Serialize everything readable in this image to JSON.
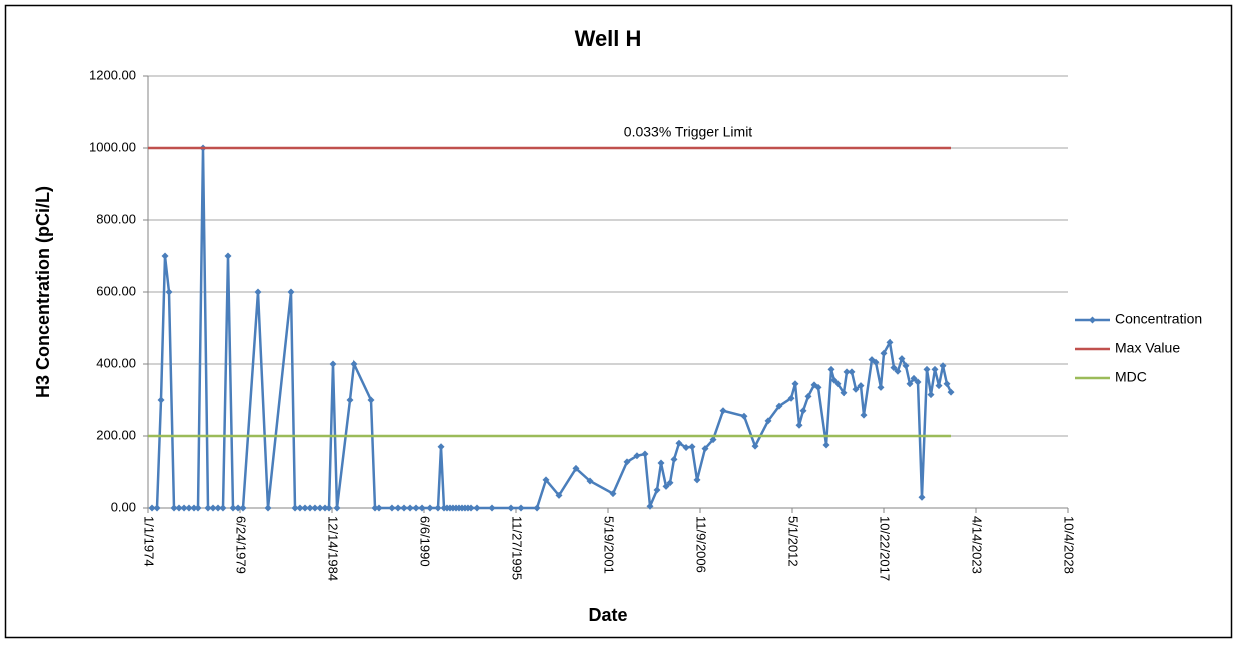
{
  "chart_data": {
    "type": "line",
    "title": "Well H",
    "x_label": "Date",
    "y_label": "H3 Concentration (pCi/L)",
    "annotation": "0.033% Trigger Limit",
    "xlim": [
      27030,
      47030
    ],
    "xticks": [
      {
        "value": 27030,
        "label": "1/1/1974"
      },
      {
        "value": 29030,
        "label": "6/24/1979"
      },
      {
        "value": 31030,
        "label": "12/14/1984"
      },
      {
        "value": 33030,
        "label": "6/6/1990"
      },
      {
        "value": 35030,
        "label": "11/27/1995"
      },
      {
        "value": 37030,
        "label": "5/19/2001"
      },
      {
        "value": 39030,
        "label": "11/9/2006"
      },
      {
        "value": 41030,
        "label": "5/1/2012"
      },
      {
        "value": 43030,
        "label": "10/22/2017"
      },
      {
        "value": 45030,
        "label": "4/14/2023"
      },
      {
        "value": 47030,
        "label": "10/4/2028"
      }
    ],
    "ylim": [
      0,
      1200
    ],
    "yticks": [
      {
        "value": 0,
        "label": "0.00"
      },
      {
        "value": 200,
        "label": "200.00"
      },
      {
        "value": 400,
        "label": "400.00"
      },
      {
        "value": 600,
        "label": "600.00"
      },
      {
        "value": 800,
        "label": "800.00"
      },
      {
        "value": 1000,
        "label": "1000.00"
      },
      {
        "value": 1200,
        "label": "1200.00"
      }
    ],
    "grid": true,
    "legend": "right",
    "series": [
      {
        "name": "Concentration",
        "color": "#4a7ebb",
        "marker": "diamond",
        "x": [
          27117,
          27226,
          27313,
          27400,
          27487,
          27595,
          27704,
          27813,
          27921,
          28030,
          28117,
          28226,
          28334,
          28443,
          28552,
          28660,
          28769,
          28878,
          28987,
          29095,
          29421,
          29639,
          30139,
          30226,
          30334,
          30443,
          30552,
          30660,
          30769,
          30878,
          30965,
          31052,
          31139,
          31421,
          31508,
          31878,
          31965,
          32052,
          32334,
          32465,
          32595,
          32726,
          32856,
          32987,
          33160,
          33334,
          33400,
          33465,
          33530,
          33595,
          33660,
          33726,
          33791,
          33856,
          33921,
          33986,
          34052,
          34182,
          34508,
          34921,
          35139,
          35487,
          35682,
          35965,
          36334,
          36639,
          37139,
          37443,
          37660,
          37834,
          37943,
          38095,
          38182,
          38291,
          38378,
          38465,
          38573,
          38726,
          38856,
          38965,
          39139,
          39313,
          39530,
          39986,
          40226,
          40508,
          40747,
          41008,
          41095,
          41182,
          41269,
          41378,
          41508,
          41595,
          41769,
          41878,
          41943,
          42030,
          42160,
          42226,
          42334,
          42421,
          42530,
          42595,
          42769,
          42856,
          42965,
          43030,
          43160,
          43247,
          43334,
          43421,
          43508,
          43595,
          43682,
          43769,
          43856,
          43965,
          44052,
          44139,
          44226,
          44313,
          44400,
          44487
        ],
        "values": [
          0,
          0,
          300,
          700,
          600,
          0,
          0,
          0,
          0,
          0,
          0,
          1000,
          0,
          0,
          0,
          0,
          700,
          0,
          0,
          0,
          600,
          0,
          600,
          0,
          0,
          0,
          0,
          0,
          0,
          0,
          0,
          400,
          0,
          300,
          400,
          300,
          0,
          0,
          0,
          0,
          0,
          0,
          0,
          0,
          0,
          0,
          170,
          0,
          0,
          0,
          0,
          0,
          0,
          0,
          0,
          0,
          0,
          0,
          0,
          0,
          0,
          0,
          78,
          35,
          110,
          75,
          40,
          128,
          145,
          150,
          5,
          50,
          125,
          60,
          70,
          135,
          180,
          168,
          170,
          78,
          165,
          190,
          270,
          255,
          172,
          242,
          283,
          305,
          345,
          230,
          270,
          310,
          342,
          335,
          175,
          385,
          355,
          345,
          320,
          378,
          378,
          330,
          340,
          258,
          412,
          405,
          335,
          430,
          460,
          390,
          380,
          415,
          395,
          345,
          360,
          350,
          30,
          385,
          315,
          385,
          340,
          395,
          345,
          322
        ]
      },
      {
        "name": "Max Value",
        "color": "#c0504d",
        "x": [
          27030,
          44487
        ],
        "values": [
          1000,
          1000
        ]
      },
      {
        "name": "MDC",
        "color": "#9bbb59",
        "x": [
          27030,
          44487
        ],
        "values": [
          200,
          200
        ]
      }
    ]
  }
}
